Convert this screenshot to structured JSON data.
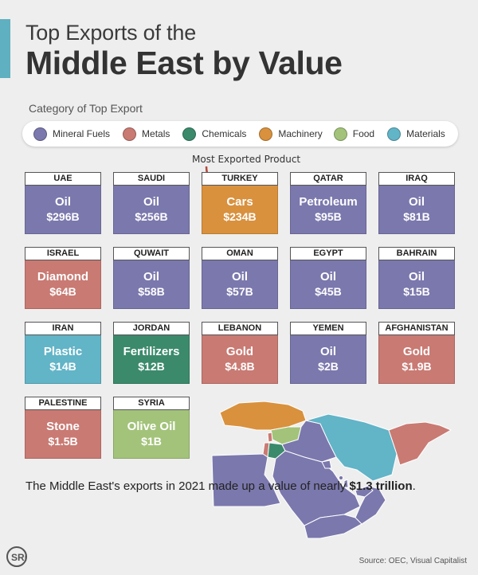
{
  "title_line1": "Top Exports of the",
  "title_line2": "Middle East by Value",
  "category_heading": "Category of Top Export",
  "legend": [
    {
      "label": "Mineral Fuels",
      "color": "#7b78ad"
    },
    {
      "label": "Metals",
      "color": "#c97a73"
    },
    {
      "label": "Chemicals",
      "color": "#3b8a6c"
    },
    {
      "label": "Machinery",
      "color": "#d9913e"
    },
    {
      "label": "Food",
      "color": "#a3c37a"
    },
    {
      "label": "Materials",
      "color": "#62b4c7"
    }
  ],
  "callout": "Most Exported Product",
  "countries": [
    {
      "country": "UAE",
      "product": "Oil",
      "value": "$296B",
      "category": "Mineral Fuels"
    },
    {
      "country": "SAUDI",
      "product": "Oil",
      "value": "$256B",
      "category": "Mineral Fuels"
    },
    {
      "country": "TURKEY",
      "product": "Cars",
      "value": "$234B",
      "category": "Machinery"
    },
    {
      "country": "QATAR",
      "product": "Petroleum",
      "value": "$95B",
      "category": "Mineral Fuels"
    },
    {
      "country": "IRAQ",
      "product": "Oil",
      "value": "$81B",
      "category": "Mineral Fuels"
    },
    {
      "country": "ISRAEL",
      "product": "Diamond",
      "value": "$64B",
      "category": "Metals"
    },
    {
      "country": "QUWAIT",
      "product": "Oil",
      "value": "$58B",
      "category": "Mineral Fuels"
    },
    {
      "country": "OMAN",
      "product": "Oil",
      "value": "$57B",
      "category": "Mineral Fuels"
    },
    {
      "country": "EGYPT",
      "product": "Oil",
      "value": "$45B",
      "category": "Mineral Fuels"
    },
    {
      "country": "BAHRAIN",
      "product": "Oil",
      "value": "$15B",
      "category": "Mineral Fuels"
    },
    {
      "country": "IRAN",
      "product": "Plastic",
      "value": "$14B",
      "category": "Materials"
    },
    {
      "country": "JORDAN",
      "product": "Fertilizers",
      "value": "$12B",
      "category": "Chemicals"
    },
    {
      "country": "LEBANON",
      "product": "Gold",
      "value": "$4.8B",
      "category": "Metals"
    },
    {
      "country": "YEMEN",
      "product": "Oil",
      "value": "$2B",
      "category": "Mineral Fuels"
    },
    {
      "country": "AFGHANISTAN",
      "product": "Gold",
      "value": "$1.9B",
      "category": "Metals"
    },
    {
      "country": "PALESTINE",
      "product": "Stone",
      "value": "$1.5B",
      "category": "Metals"
    },
    {
      "country": "SYRIA",
      "product": "Olive Oil",
      "value": "$1B",
      "category": "Food"
    }
  ],
  "note_prefix": "The Middle East's exports in 2021 made up a value of nearly ",
  "note_value": "$1.3 trillion",
  "note_suffix": ".",
  "logo_text": "SRi",
  "source": "Source: OEC, Visual Capitalist"
}
